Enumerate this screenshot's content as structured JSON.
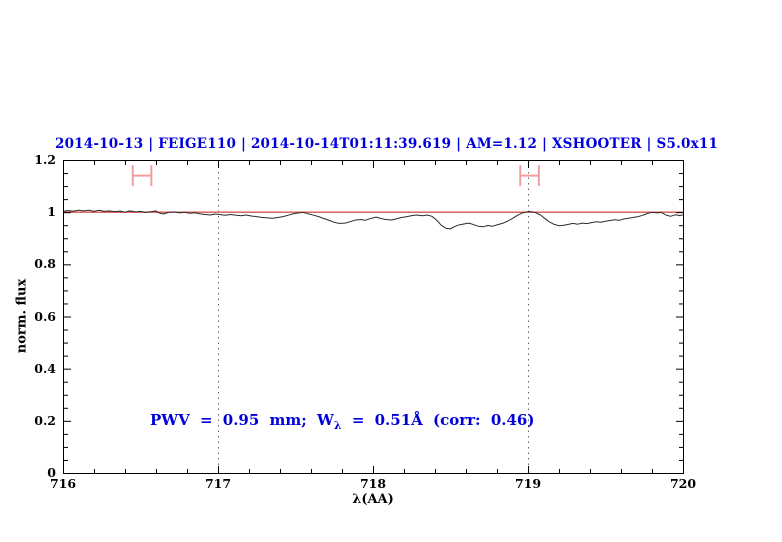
{
  "chart_data": {
    "type": "line",
    "title": "2014-10-13 | FEIGE110 | 2014-10-14T01:11:39.619 | AM=1.12 | XSHOOTER | S5.0x11",
    "title_color": "#0000dd",
    "xlabel": "λ(AA)",
    "ylabel": "norm. flux",
    "xlim": [
      716,
      720
    ],
    "ylim": [
      0,
      1.2
    ],
    "x_ticks": [
      716,
      717,
      718,
      719,
      720
    ],
    "x_tick_labels": [
      "716",
      "717",
      "718",
      "719",
      "720"
    ],
    "x_minor_step": 0.2,
    "y_ticks": [
      0,
      0.2,
      0.4,
      0.6,
      0.8,
      1,
      1.2
    ],
    "y_tick_labels": [
      "0",
      "0.2",
      "0.4",
      "0.6",
      "0.8",
      "1",
      "1.2"
    ],
    "y_minor_step": 0.05,
    "grid": "off",
    "dotted_vlines": [
      717,
      719
    ],
    "dotted_vline_color": "#666666",
    "continuum_line": {
      "flux": 1.0,
      "color": "#d9544d"
    },
    "band_markers": {
      "color": "#f29e9e",
      "flux_center": 1.14,
      "flux_half_height": 0.04,
      "items": [
        {
          "lambda_min": 716.45,
          "lambda_max": 716.57
        },
        {
          "lambda_min": 718.95,
          "lambda_max": 719.07
        }
      ]
    },
    "annotation": {
      "prefix": "PWV = 0.95 mm; W",
      "subscript": "λ",
      "suffix": " = 0.51Å (corr: 0.46)",
      "color": "#0000dd"
    },
    "series": [
      {
        "name": "spectrum",
        "color": "#2b2b2b",
        "points": [
          [
            716.0,
            1.003
          ],
          [
            716.03,
            1.006
          ],
          [
            716.07,
            1.004
          ],
          [
            716.1,
            1.008
          ],
          [
            716.13,
            1.005
          ],
          [
            716.17,
            1.007
          ],
          [
            716.2,
            1.003
          ],
          [
            716.23,
            1.007
          ],
          [
            716.27,
            1.003
          ],
          [
            716.3,
            1.005
          ],
          [
            716.33,
            1.002
          ],
          [
            716.37,
            1.004
          ],
          [
            716.4,
            1.0
          ],
          [
            716.43,
            1.005
          ],
          [
            716.47,
            1.001
          ],
          [
            716.5,
            1.003
          ],
          [
            716.53,
            0.999
          ],
          [
            716.57,
            1.002
          ],
          [
            716.6,
            1.005
          ],
          [
            716.62,
            0.997
          ],
          [
            716.65,
            0.993
          ],
          [
            716.68,
            0.999
          ],
          [
            716.72,
            1.001
          ],
          [
            716.75,
            0.997
          ],
          [
            716.78,
            1.0
          ],
          [
            716.82,
            0.996
          ],
          [
            716.85,
            0.998
          ],
          [
            716.88,
            0.994
          ],
          [
            716.92,
            0.991
          ],
          [
            716.95,
            0.989
          ],
          [
            716.98,
            0.993
          ],
          [
            717.02,
            0.99
          ],
          [
            717.05,
            0.988
          ],
          [
            717.08,
            0.991
          ],
          [
            717.12,
            0.988
          ],
          [
            717.15,
            0.986
          ],
          [
            717.18,
            0.989
          ],
          [
            717.22,
            0.985
          ],
          [
            717.25,
            0.983
          ],
          [
            717.28,
            0.98
          ],
          [
            717.32,
            0.978
          ],
          [
            717.35,
            0.977
          ],
          [
            717.38,
            0.979
          ],
          [
            717.42,
            0.983
          ],
          [
            717.45,
            0.988
          ],
          [
            717.48,
            0.993
          ],
          [
            717.52,
            0.997
          ],
          [
            717.55,
            0.999
          ],
          [
            717.58,
            0.994
          ],
          [
            717.62,
            0.988
          ],
          [
            717.65,
            0.983
          ],
          [
            717.68,
            0.976
          ],
          [
            717.72,
            0.968
          ],
          [
            717.75,
            0.961
          ],
          [
            717.78,
            0.957
          ],
          [
            717.82,
            0.958
          ],
          [
            717.85,
            0.963
          ],
          [
            717.88,
            0.969
          ],
          [
            717.92,
            0.972
          ],
          [
            717.95,
            0.969
          ],
          [
            717.98,
            0.975
          ],
          [
            718.02,
            0.981
          ],
          [
            718.05,
            0.976
          ],
          [
            718.08,
            0.972
          ],
          [
            718.12,
            0.97
          ],
          [
            718.15,
            0.974
          ],
          [
            718.18,
            0.979
          ],
          [
            718.22,
            0.983
          ],
          [
            718.25,
            0.987
          ],
          [
            718.28,
            0.989
          ],
          [
            718.32,
            0.986
          ],
          [
            718.35,
            0.989
          ],
          [
            718.38,
            0.984
          ],
          [
            718.41,
            0.97
          ],
          [
            718.44,
            0.95
          ],
          [
            718.47,
            0.938
          ],
          [
            718.5,
            0.936
          ],
          [
            718.53,
            0.946
          ],
          [
            718.56,
            0.952
          ],
          [
            718.59,
            0.955
          ],
          [
            718.62,
            0.958
          ],
          [
            718.65,
            0.952
          ],
          [
            718.68,
            0.946
          ],
          [
            718.71,
            0.944
          ],
          [
            718.74,
            0.949
          ],
          [
            718.77,
            0.946
          ],
          [
            718.8,
            0.951
          ],
          [
            718.84,
            0.958
          ],
          [
            718.87,
            0.966
          ],
          [
            718.9,
            0.976
          ],
          [
            718.93,
            0.987
          ],
          [
            718.96,
            0.996
          ],
          [
            718.99,
            1.001
          ],
          [
            719.02,
            1.002
          ],
          [
            719.05,
            0.998
          ],
          [
            719.08,
            0.989
          ],
          [
            719.11,
            0.975
          ],
          [
            719.14,
            0.962
          ],
          [
            719.17,
            0.953
          ],
          [
            719.2,
            0.948
          ],
          [
            719.23,
            0.95
          ],
          [
            719.26,
            0.953
          ],
          [
            719.29,
            0.957
          ],
          [
            719.32,
            0.954
          ],
          [
            719.35,
            0.958
          ],
          [
            719.38,
            0.956
          ],
          [
            719.41,
            0.96
          ],
          [
            719.44,
            0.963
          ],
          [
            719.47,
            0.961
          ],
          [
            719.5,
            0.965
          ],
          [
            719.53,
            0.968
          ],
          [
            719.56,
            0.971
          ],
          [
            719.59,
            0.969
          ],
          [
            719.62,
            0.974
          ],
          [
            719.65,
            0.977
          ],
          [
            719.68,
            0.98
          ],
          [
            719.71,
            0.983
          ],
          [
            719.74,
            0.988
          ],
          [
            719.77,
            0.995
          ],
          [
            719.8,
            1.0
          ],
          [
            719.83,
            0.997
          ],
          [
            719.86,
            0.999
          ],
          [
            719.89,
            0.989
          ],
          [
            719.92,
            0.984
          ],
          [
            719.95,
            0.99
          ],
          [
            719.98,
            0.987
          ],
          [
            720.0,
            0.99
          ]
        ]
      }
    ]
  }
}
